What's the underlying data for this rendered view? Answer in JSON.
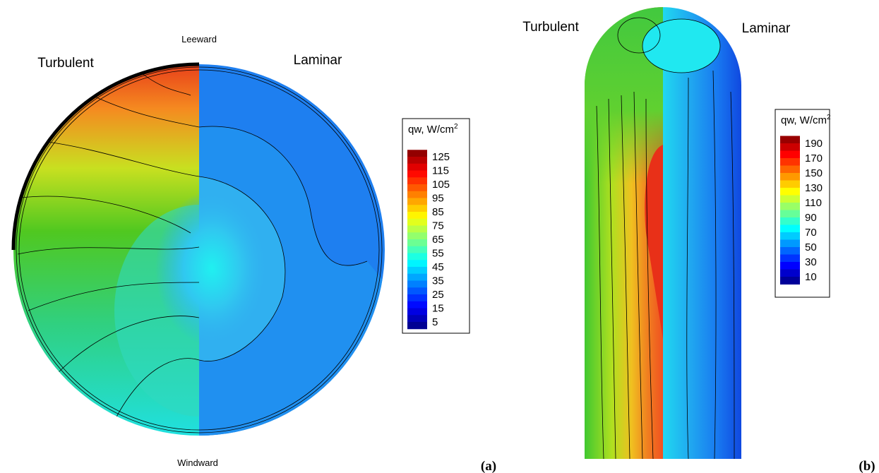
{
  "panel_a": {
    "label_top": "Leeward",
    "label_bottom": "Windward",
    "label_left": "Turbulent",
    "label_right": "Laminar",
    "caption": "(a)",
    "legend": {
      "title": "qw, W/cm",
      "title_sup": "2",
      "ticks": [
        125,
        115,
        105,
        95,
        85,
        75,
        65,
        55,
        45,
        35,
        25,
        15,
        5
      ]
    }
  },
  "panel_b": {
    "label_left": "Turbulent",
    "label_right": "Laminar",
    "caption": "(b)",
    "legend": {
      "title": "qw, W/cm",
      "title_sup": "2",
      "ticks": [
        190,
        170,
        150,
        130,
        110,
        90,
        70,
        50,
        30,
        10
      ]
    }
  }
}
